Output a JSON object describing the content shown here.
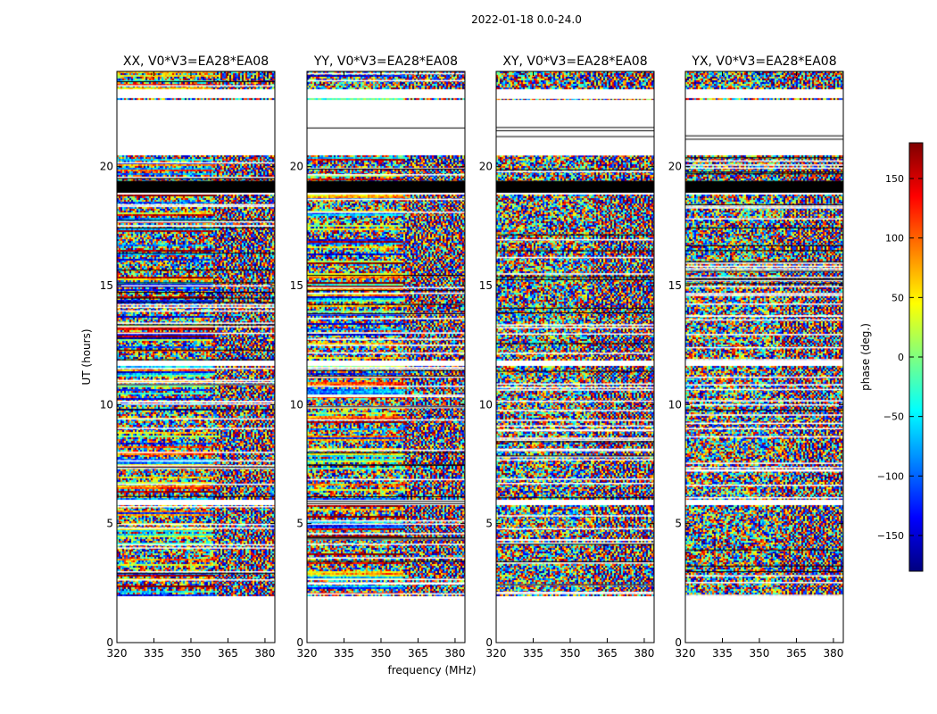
{
  "figure": {
    "suptitle": "2022-01-18 0.0-24.0",
    "xlabel": "frequency (MHz)",
    "ylabel": "UT (hours)"
  },
  "colorbar": {
    "label": "phase (deg.)",
    "ticks": [
      150,
      100,
      50,
      0,
      -50,
      -100,
      -150
    ],
    "tick_labels": [
      "150",
      "100",
      "50",
      "0",
      "−50",
      "−100",
      "−150"
    ],
    "range": [
      -180,
      180
    ],
    "colormap": "jet"
  },
  "chart_data": {
    "type": "heatmap",
    "xlim": [
      320,
      384
    ],
    "ylim": [
      0,
      24
    ],
    "xticks": [
      320,
      335,
      350,
      365,
      380
    ],
    "xtick_labels": [
      "320",
      "335",
      "350",
      "365",
      "380"
    ],
    "yticks": [
      0,
      5,
      10,
      15,
      20
    ],
    "ytick_labels": [
      "0",
      "5",
      "10",
      "15",
      "20"
    ],
    "value_range": [
      -180,
      180
    ],
    "data_span_hours": [
      2.0,
      24.0
    ],
    "gaps_hours": [
      [
        22.9,
        23.3
      ],
      [
        20.8,
        22.8
      ],
      [
        20.5,
        20.8
      ],
      [
        18.9,
        19.4
      ],
      [
        11.7,
        11.9
      ],
      [
        5.8,
        6.0
      ]
    ],
    "panels": [
      {
        "title": "XX, V0*V3=EA28*EA08",
        "polarization": "XX"
      },
      {
        "title": "YY, V0*V3=EA28*EA08",
        "polarization": "YY"
      },
      {
        "title": "XY, V0*V3=EA28*EA08",
        "polarization": "XY"
      },
      {
        "title": "YX, V0*V3=EA28*EA08",
        "polarization": "YX"
      }
    ]
  }
}
